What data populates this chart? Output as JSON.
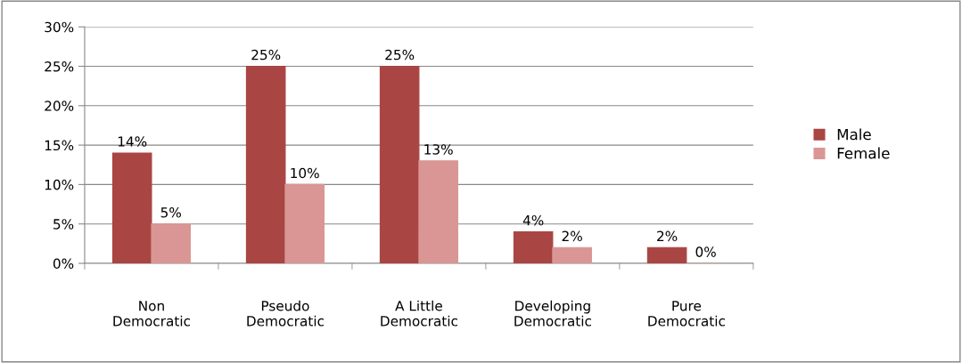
{
  "chart_data": {
    "type": "bar",
    "categories": [
      "Non\nDemocratic",
      "Pseudo\nDemocratic",
      "A Little\nDemocratic",
      "Developing\nDemocratic",
      "Pure\nDemocratic"
    ],
    "series": [
      {
        "name": "Male",
        "color": "#a94543",
        "values": [
          14,
          25,
          25,
          4,
          2
        ],
        "value_labels": [
          "14%",
          "25%",
          "25%",
          "4%",
          "2%"
        ]
      },
      {
        "name": "Female",
        "color": "#d99694",
        "values": [
          5,
          10,
          13,
          2,
          0
        ],
        "value_labels": [
          "5%",
          "10%",
          "13%",
          "2%",
          "0%"
        ]
      }
    ],
    "ylim": [
      0,
      30
    ],
    "yticks": [
      {
        "value": 0,
        "label": "0%"
      },
      {
        "value": 5,
        "label": "5%"
      },
      {
        "value": 10,
        "label": "10%"
      },
      {
        "value": 15,
        "label": "15%"
      },
      {
        "value": 20,
        "label": "20%"
      },
      {
        "value": 25,
        "label": "25%"
      },
      {
        "value": 30,
        "label": "30%"
      }
    ],
    "grid": "y",
    "legend": "right"
  }
}
